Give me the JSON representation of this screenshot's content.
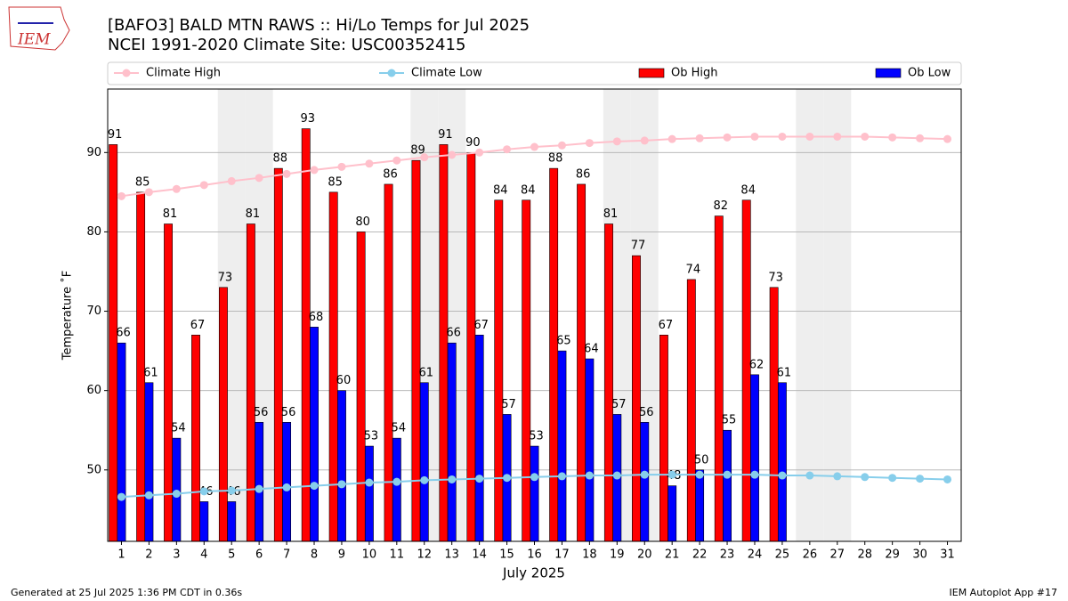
{
  "logo_text": "IEM",
  "footer_left": "Generated at 25 Jul 2025 1:36 PM CDT in 0.36s",
  "footer_right": "IEM Autoplot App #17",
  "chart_data": {
    "type": "bar",
    "title": "[BAFO3] BALD MTN RAWS :: Hi/Lo Temps for Jul 2025",
    "subtitle": "NCEI 1991-2020 Climate Site: USC00352415",
    "xlabel": "July 2025",
    "ylabel": "Temperature ˚F",
    "x": [
      1,
      2,
      3,
      4,
      5,
      6,
      7,
      8,
      9,
      10,
      11,
      12,
      13,
      14,
      15,
      16,
      17,
      18,
      19,
      20,
      21,
      22,
      23,
      24,
      25,
      26,
      27,
      28,
      29,
      30,
      31
    ],
    "xlim": [
      0.5,
      31.5
    ],
    "xticks": [
      1,
      2,
      3,
      4,
      5,
      6,
      7,
      8,
      9,
      10,
      11,
      12,
      13,
      14,
      15,
      16,
      17,
      18,
      19,
      20,
      21,
      22,
      23,
      24,
      25,
      26,
      27,
      28,
      29,
      30,
      31
    ],
    "ylim": [
      41,
      98
    ],
    "yticks": [
      50,
      60,
      70,
      80,
      90
    ],
    "grid": true,
    "shaded_days": [
      5,
      6,
      12,
      13,
      19,
      20,
      26,
      27
    ],
    "series": [
      {
        "name": "Climate High",
        "kind": "line",
        "color": "#ffc0cb",
        "values": [
          84.5,
          85,
          85.4,
          85.9,
          86.4,
          86.8,
          87.3,
          87.8,
          88.2,
          88.6,
          89,
          89.4,
          89.7,
          90,
          90.4,
          90.7,
          90.9,
          91.2,
          91.4,
          91.5,
          91.7,
          91.8,
          91.9,
          92,
          92,
          92,
          92,
          92,
          91.9,
          91.8,
          91.7
        ]
      },
      {
        "name": "Climate Low",
        "kind": "line",
        "color": "#87ceeb",
        "values": [
          46.6,
          46.8,
          47,
          47.3,
          47.4,
          47.6,
          47.8,
          48,
          48.2,
          48.4,
          48.5,
          48.7,
          48.8,
          48.9,
          49,
          49.1,
          49.2,
          49.3,
          49.3,
          49.4,
          49.4,
          49.4,
          49.4,
          49.4,
          49.3,
          49.3,
          49.2,
          49.1,
          49,
          48.9,
          48.8
        ]
      },
      {
        "name": "Ob High",
        "kind": "bar",
        "color": "#ff0000",
        "values": [
          91,
          85,
          81,
          67,
          73,
          81,
          88,
          93,
          85,
          80,
          86,
          89,
          91,
          90,
          84,
          84,
          88,
          86,
          81,
          77,
          67,
          74,
          82,
          84,
          73,
          null,
          null,
          null,
          null,
          null,
          null
        ]
      },
      {
        "name": "Ob Low",
        "kind": "bar",
        "color": "#0000ff",
        "values": [
          66,
          61,
          54,
          46,
          46,
          56,
          56,
          68,
          60,
          53,
          54,
          61,
          66,
          67,
          57,
          53,
          65,
          64,
          57,
          56,
          48,
          50,
          55,
          62,
          61,
          null,
          null,
          null,
          null,
          null,
          null
        ]
      }
    ]
  }
}
